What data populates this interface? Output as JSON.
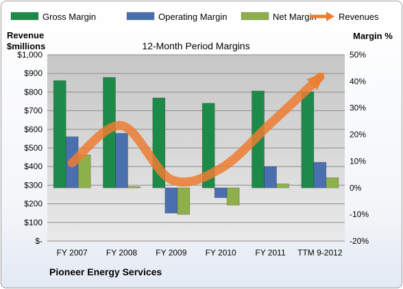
{
  "chart_data": {
    "type": "bar",
    "title": "12-Month Period Margins",
    "footer": "Pioneer Energy Services",
    "left_axis": {
      "label_line1": "Revenue",
      "label_line2": "$millions",
      "range": [
        0,
        1000
      ],
      "ticks": [
        "$-",
        "$100",
        "$200",
        "$300",
        "$400",
        "$500",
        "$600",
        "$700",
        "$800",
        "$900",
        "$1,000"
      ]
    },
    "right_axis": {
      "label": "Margin %",
      "range": [
        -20,
        50
      ],
      "ticks": [
        "-20%",
        "-10%",
        "0%",
        "10%",
        "20%",
        "30%",
        "40%",
        "50%"
      ]
    },
    "categories": [
      "FY 2007",
      "FY 2008",
      "FY 2009",
      "FY 2010",
      "FY 2011",
      "TTM 9-2012"
    ],
    "series": [
      {
        "name": "Gross Margin",
        "axis": "right",
        "color": "#1e8a4a",
        "values": [
          40.3,
          41.5,
          33.8,
          31.8,
          36.4,
          36.1
        ]
      },
      {
        "name": "Operating Margin",
        "axis": "right",
        "color": "#4a6fae",
        "values": [
          19.2,
          20.5,
          -9.5,
          -3.7,
          8.0,
          9.6
        ]
      },
      {
        "name": "Net Margin",
        "axis": "right",
        "color": "#8eb04a",
        "values": [
          12.4,
          0.5,
          -10.0,
          -6.5,
          1.5,
          3.8
        ]
      },
      {
        "name": "Revenues",
        "axis": "left",
        "type": "line",
        "color": "#ed7d31",
        "values": [
          420,
          620,
          330,
          390,
          630,
          880
        ]
      }
    ],
    "grid": true,
    "legend_position": "top"
  }
}
